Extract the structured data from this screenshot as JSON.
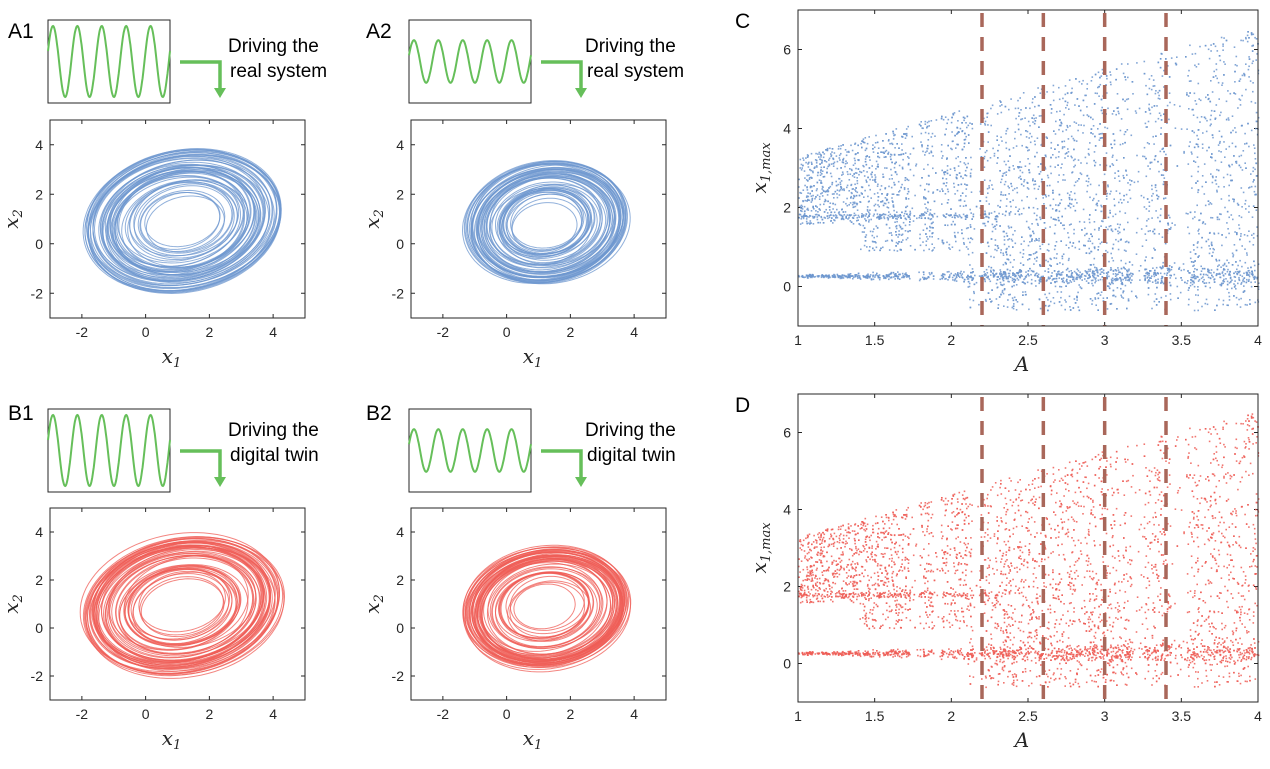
{
  "panel_labels": {
    "A1": "A1",
    "A2": "A2",
    "B1": "B1",
    "B2": "B2",
    "C": "C",
    "D": "D"
  },
  "drive_labels": {
    "A1": [
      "Driving the",
      "real system"
    ],
    "A2": [
      "Driving the",
      "real system"
    ],
    "B1": [
      "Driving the",
      "digital twin"
    ],
    "B2": [
      "Driving the",
      "digital twin"
    ]
  },
  "colors": {
    "real": "#6d97cf",
    "twin": "#ef5e57",
    "drive": "#66bf5a",
    "marker": "#a9675a",
    "axis": "#262626"
  },
  "chart_data": [
    {
      "id": "A1",
      "type": "line",
      "description_series": "phase portrait, real system, stronger drive",
      "xlabel": "x",
      "xlabel_sub": "1",
      "ylabel": "x",
      "ylabel_sub": "2",
      "xlim": [
        -3,
        5
      ],
      "ylim": [
        -3,
        5
      ],
      "xticks": [
        -2,
        0,
        2,
        4
      ],
      "yticks": [
        -2,
        0,
        2,
        4
      ],
      "attractor": {
        "x_range": [
          -2.5,
          4.5
        ],
        "y_range": [
          -2.3,
          4.5
        ]
      },
      "drive_signal": {
        "cycles": 5,
        "amplitude": 1.0
      }
    },
    {
      "id": "A2",
      "type": "line",
      "xlabel": "x",
      "xlabel_sub": "1",
      "ylabel": "x",
      "ylabel_sub": "2",
      "xlim": [
        -3,
        5
      ],
      "ylim": [
        -3,
        5
      ],
      "xticks": [
        -2,
        0,
        2,
        4
      ],
      "yticks": [
        -2,
        0,
        2,
        4
      ],
      "attractor": {
        "x_range": [
          -1.8,
          4.0
        ],
        "y_range": [
          -2.0,
          4.0
        ]
      },
      "drive_signal": {
        "cycles": 5,
        "amplitude": 0.6
      }
    },
    {
      "id": "B1",
      "type": "line",
      "xlabel": "x",
      "xlabel_sub": "1",
      "ylabel": "x",
      "ylabel_sub": "2",
      "xlim": [
        -3,
        5
      ],
      "ylim": [
        -3,
        5
      ],
      "xticks": [
        -2,
        0,
        2,
        4
      ],
      "yticks": [
        -2,
        0,
        2,
        4
      ],
      "attractor": {
        "x_range": [
          -2.5,
          4.5
        ],
        "y_range": [
          -2.3,
          4.5
        ]
      },
      "drive_signal": {
        "cycles": 5,
        "amplitude": 1.0
      }
    },
    {
      "id": "B2",
      "type": "line",
      "xlabel": "x",
      "xlabel_sub": "1",
      "ylabel": "x",
      "ylabel_sub": "2",
      "xlim": [
        -3,
        5
      ],
      "ylim": [
        -3,
        5
      ],
      "xticks": [
        -2,
        0,
        2,
        4
      ],
      "yticks": [
        -2,
        0,
        2,
        4
      ],
      "attractor": {
        "x_range": [
          -1.8,
          4.0
        ],
        "y_range": [
          -2.0,
          4.0
        ]
      },
      "drive_signal": {
        "cycles": 5,
        "amplitude": 0.6
      }
    },
    {
      "id": "C",
      "type": "scatter",
      "xlabel": "A",
      "ylabel": "x",
      "ylabel_sub": "1,max",
      "xlim": [
        1,
        4
      ],
      "ylim": [
        -1,
        7
      ],
      "xticks": [
        1,
        1.5,
        2,
        2.5,
        3,
        3.5,
        4
      ],
      "yticks": [
        0,
        2,
        4,
        6
      ],
      "markers_x": [
        2.2,
        2.6,
        3.0,
        3.4
      ]
    },
    {
      "id": "D",
      "type": "scatter",
      "xlabel": "A",
      "ylabel": "x",
      "ylabel_sub": "1,max",
      "xlim": [
        1,
        4
      ],
      "ylim": [
        -1,
        7
      ],
      "xticks": [
        1,
        1.5,
        2,
        2.5,
        3,
        3.5,
        4
      ],
      "yticks": [
        0,
        2,
        4,
        6
      ],
      "markers_x": [
        2.2,
        2.6,
        3.0,
        3.4
      ]
    }
  ]
}
